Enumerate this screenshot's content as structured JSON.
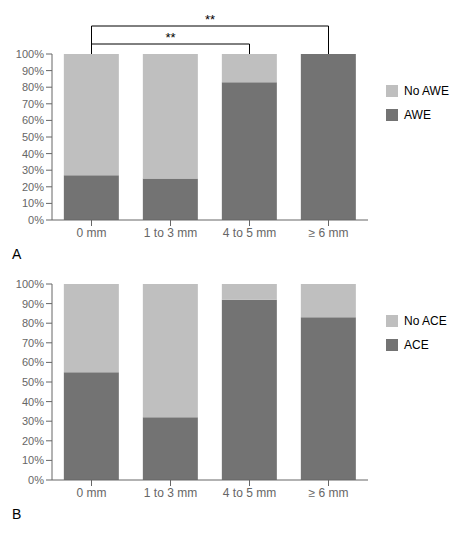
{
  "chart_data": [
    {
      "type": "bar",
      "title": "A",
      "categories": [
        "0 mm",
        "1 to 3 mm",
        "4 to 5 mm",
        "≥ 6 mm"
      ],
      "series": [
        {
          "name": "AWE",
          "color": "#737373",
          "values": [
            27,
            25,
            83,
            100
          ]
        },
        {
          "name": "No AWE",
          "color": "#bfbfbf",
          "values": [
            73,
            75,
            17,
            0
          ]
        }
      ],
      "stacked": true,
      "ylim": [
        0,
        100
      ],
      "yticks": [
        {
          "value": 0,
          "label": "0%"
        },
        {
          "value": 10,
          "label": "10%"
        },
        {
          "value": 20,
          "label": "20%"
        },
        {
          "value": 30,
          "label": "30%"
        },
        {
          "value": 40,
          "label": "40%"
        },
        {
          "value": 50,
          "label": "50%"
        },
        {
          "value": 60,
          "label": "60%"
        },
        {
          "value": 70,
          "label": "70%"
        },
        {
          "value": 80,
          "label": "80%"
        },
        {
          "value": 90,
          "label": "90%"
        },
        {
          "value": 100,
          "label": "100%"
        }
      ],
      "grid": false,
      "legend": "right",
      "annotations": [
        {
          "text": "**",
          "from": "0 mm",
          "to": "4 to 5 mm"
        },
        {
          "text": "**",
          "from": "0 mm",
          "to": "≥ 6 mm"
        }
      ]
    },
    {
      "type": "bar",
      "title": "B",
      "categories": [
        "0 mm",
        "1 to 3 mm",
        "4 to 5 mm",
        "≥ 6 mm"
      ],
      "series": [
        {
          "name": "ACE",
          "color": "#737373",
          "values": [
            55,
            32,
            92,
            83
          ]
        },
        {
          "name": "No ACE",
          "color": "#bfbfbf",
          "values": [
            45,
            68,
            8,
            17
          ]
        }
      ],
      "stacked": true,
      "ylim": [
        0,
        100
      ],
      "yticks": [
        {
          "value": 0,
          "label": "0%"
        },
        {
          "value": 10,
          "label": "10%"
        },
        {
          "value": 20,
          "label": "20%"
        },
        {
          "value": 30,
          "label": "30%"
        },
        {
          "value": 40,
          "label": "40%"
        },
        {
          "value": 50,
          "label": "50%"
        },
        {
          "value": 60,
          "label": "60%"
        },
        {
          "value": 70,
          "label": "70%"
        },
        {
          "value": 80,
          "label": "80%"
        },
        {
          "value": 90,
          "label": "90%"
        },
        {
          "value": 100,
          "label": "100%"
        }
      ],
      "grid": false,
      "legend": "right"
    }
  ]
}
